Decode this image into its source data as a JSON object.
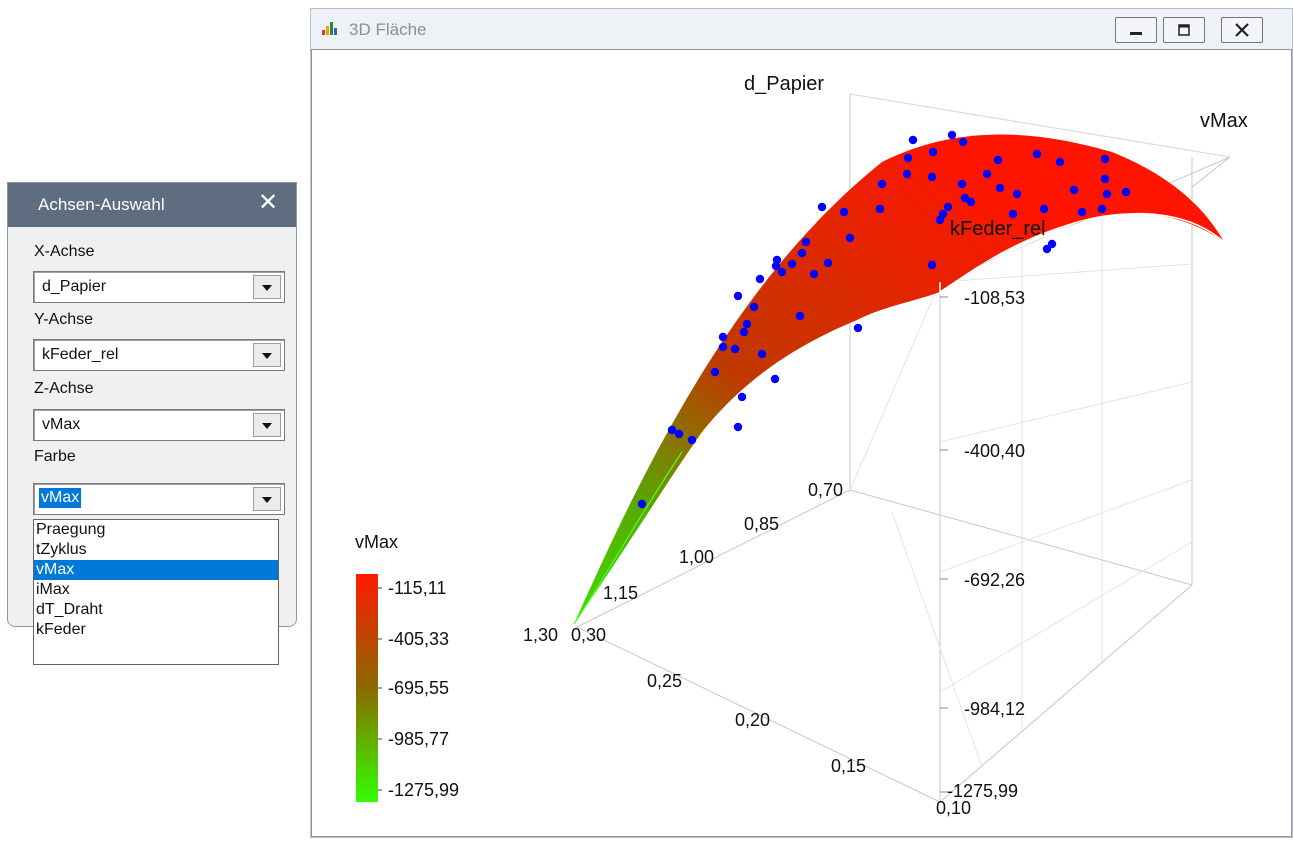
{
  "window": {
    "title": "3D Fläche",
    "minimize_icon": "minimize-icon",
    "maximize_icon": "maximize-icon",
    "close_icon": "close-icon"
  },
  "panel": {
    "title": "Achsen-Auswahl",
    "close_glyph": "✕",
    "x_label": "X-Achse",
    "x_value": "d_Papier",
    "y_label": "Y-Achse",
    "y_value": "kFeder_rel",
    "z_label": "Z-Achse",
    "z_value": "vMax",
    "color_label": "Farbe",
    "color_value": "vMax",
    "color_options": [
      "Praegung",
      "tZyklus",
      "vMax",
      "iMax",
      "dT_Draht",
      "kFeder"
    ],
    "color_selected": "vMax"
  },
  "chart_data": {
    "type": "scatter",
    "x_axis_label": "d_Papier",
    "y_axis_label": "kFeder_rel",
    "z_axis_label": "vMax",
    "x_ticks": [
      "0,70",
      "0,85",
      "1,00",
      "1,15",
      "1,30"
    ],
    "y_ticks": [
      "0,30",
      "0,25",
      "0,20",
      "0,15",
      "0,10"
    ],
    "z_ticks": [
      "-108,53",
      "-400,40",
      "-692,26",
      "-984,12",
      "-1275,99"
    ],
    "legend": {
      "title": "vMax",
      "values": [
        "-115,11",
        "-405,33",
        "-695,55",
        "-985,77",
        "-1275,99"
      ],
      "color_high": "#ff1a00",
      "color_low": "#33ff00"
    },
    "surface_color_high": "#ff1400",
    "surface_color_low": "#3de000",
    "point_color": "#0000ff"
  }
}
